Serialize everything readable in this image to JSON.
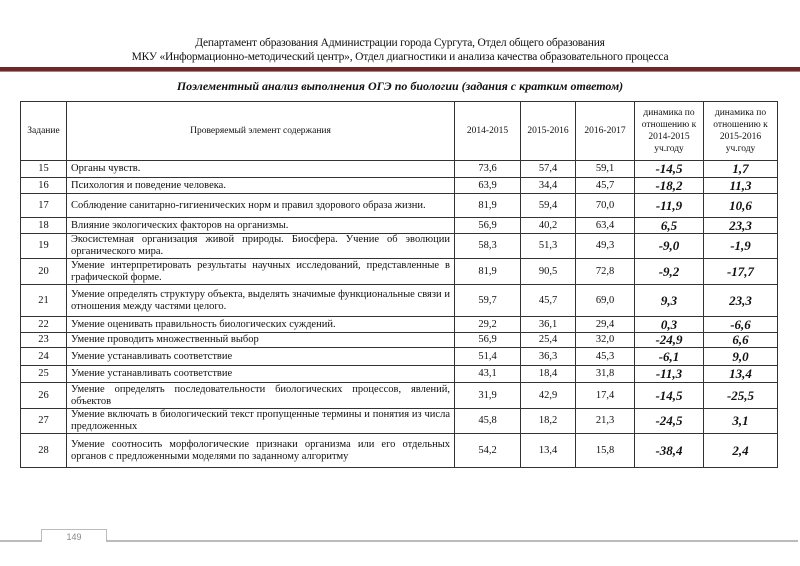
{
  "header": {
    "line1": "Департамент образования Администрации города Сургута, Отдел общего образования",
    "line2": "МКУ «Информационно-методический центр», Отдел диагностики и анализа качества образовательного процесса",
    "rule_color": "#6b2a2a"
  },
  "title": "Поэлементный анализ выполнения ОГЭ по биологии (задания с кратким ответом)",
  "table": {
    "columns": [
      "Задание",
      "Проверяемый элемент содержания",
      "2014-2015",
      "2015-2016",
      "2016-2017",
      "динамика по отношению к 2014-2015 уч.году",
      "динамика по отношению к 2015-2016 уч.году"
    ],
    "rows": [
      [
        "15",
        "Органы чувств.",
        "73,6",
        "57,4",
        "59,1",
        "-14,5",
        "1,7"
      ],
      [
        "16",
        "Психология  и поведение человека.",
        "63,9",
        "34,4",
        "45,7",
        "-18,2",
        "11,3"
      ],
      [
        "17",
        "Соблюдение санитарно-гигиенических норм и правил здорового образа жизни.",
        "81,9",
        "59,4",
        "70,0",
        "-11,9",
        "10,6"
      ],
      [
        "18",
        "Влияние экологических факторов на организмы.",
        "56,9",
        "40,2",
        "63,4",
        "6,5",
        "23,3"
      ],
      [
        "19",
        "Экосистемная организация живой    природы. Биосфера. Учение об эволюции органического мира.",
        "58,3",
        "51,3",
        "49,3",
        "-9,0",
        "-1,9"
      ],
      [
        "20",
        "Умение интерпретировать результаты научных исследований, представленные в графической форме.",
        "81,9",
        "90,5",
        "72,8",
        "-9,2",
        "-17,7"
      ],
      [
        "21",
        "Умение определять структуру объекта,    выделять значимые функциональные  связи и отношения между частями целого.",
        "59,7",
        "45,7",
        "69,0",
        "9,3",
        "23,3"
      ],
      [
        "22",
        "Умение оценивать правильность биологических суждений.",
        "29,2",
        "36,1",
        "29,4",
        "0,3",
        "-6,6"
      ],
      [
        "23",
        "Умение проводить множественный выбор",
        "56,9",
        "25,4",
        "32,0",
        "-24,9",
        "6,6"
      ],
      [
        "24",
        "Умение устанавливать соответствие",
        "51,4",
        "36,3",
        "45,3",
        "-6,1",
        "9,0"
      ],
      [
        "25",
        "Умение устанавливать соответствие",
        "43,1",
        "18,4",
        "31,8",
        "-11,3",
        "13,4"
      ],
      [
        "26",
        "Умение определять последовательности биологических процессов, явлений, объектов",
        "31,9",
        "42,9",
        "17,4",
        "-14,5",
        "-25,5"
      ],
      [
        "27",
        "Умение включать в биологический текст пропущенные термины и понятия из числа предложенных",
        "45,8",
        "18,2",
        "21,3",
        "-24,5",
        "3,1"
      ],
      [
        "28",
        "Умение соотносить морфологические признаки организма или его отдельных органов с предложенными моделями по заданному алгоритму",
        "54,2",
        "13,4",
        "15,8",
        "-38,4",
        "2,4"
      ]
    ]
  },
  "footer": {
    "page_number": "149"
  }
}
